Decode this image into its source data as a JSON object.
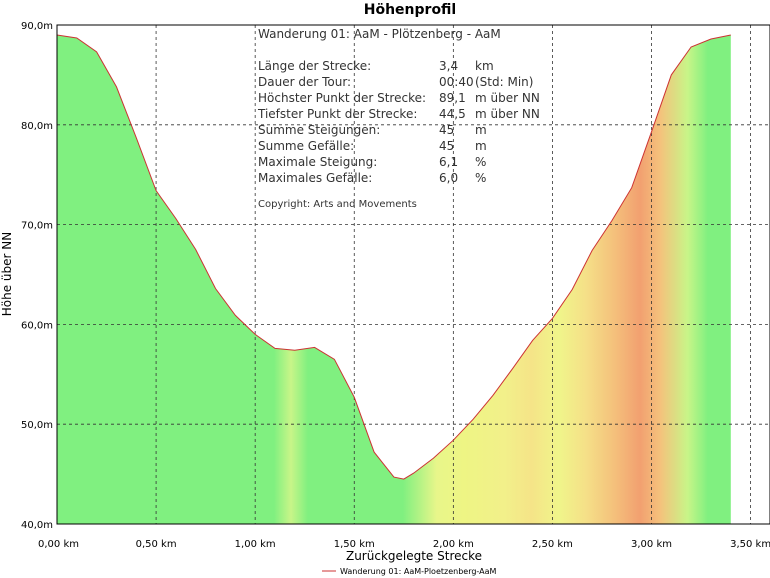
{
  "chart_data": {
    "type": "area",
    "title": "Höhenprofil",
    "xlabel": "Zurückgelegte Strecke",
    "ylabel": "Höhe über NN",
    "xlim": [
      0,
      3.5
    ],
    "ylim": [
      40,
      90
    ],
    "grid": true,
    "x_ticks": [
      "0,00 km",
      "0,50 km",
      "1,00 km",
      "1,50 km",
      "2,00 km",
      "2,50 km",
      "3,00 km",
      "3,50 km"
    ],
    "y_ticks": [
      "40,0m",
      "50,0m",
      "60,0m",
      "70,0m",
      "80,0m",
      "90,0m"
    ],
    "legend": {
      "placement": "bottom-center",
      "entries": [
        "Wanderung 01: AaM-Ploetzenberg-AaM"
      ]
    },
    "series": [
      {
        "name": "Wanderung 01: AaM-Ploetzenberg-AaM",
        "x": [
          0.0,
          0.1,
          0.2,
          0.3,
          0.4,
          0.5,
          0.6,
          0.7,
          0.8,
          0.9,
          1.0,
          1.1,
          1.2,
          1.3,
          1.4,
          1.5,
          1.6,
          1.7,
          1.75,
          1.8,
          1.9,
          2.0,
          2.1,
          2.2,
          2.3,
          2.4,
          2.5,
          2.6,
          2.7,
          2.8,
          2.9,
          3.0,
          3.1,
          3.2,
          3.3,
          3.4
        ],
        "values": [
          89.0,
          88.7,
          87.3,
          83.8,
          78.7,
          73.4,
          70.6,
          67.5,
          63.6,
          60.9,
          59.0,
          57.6,
          57.4,
          57.7,
          56.5,
          52.7,
          47.2,
          44.7,
          44.5,
          45.1,
          46.6,
          48.4,
          50.5,
          52.9,
          55.6,
          58.4,
          60.6,
          63.5,
          67.4,
          70.4,
          73.7,
          79.3,
          85.0,
          87.8,
          88.6,
          89.0
        ]
      }
    ],
    "gradient_colors": {
      "flat": "#80F080",
      "moderate": "#EEF584",
      "steep": "#F2A070"
    }
  },
  "info": {
    "heading": "Wanderung 01: AaM - Plötzenberg - AaM",
    "rows": [
      {
        "label": "Länge der Strecke:",
        "value": "3,4",
        "unit": "km"
      },
      {
        "label": "Dauer der Tour:",
        "value": "00:40",
        "unit": "(Std: Min)"
      },
      {
        "label": "Höchster Punkt der Strecke:",
        "value": "89,1",
        "unit": "m über NN"
      },
      {
        "label": "Tiefster Punkt der Strecke:",
        "value": "44,5",
        "unit": "m über NN"
      },
      {
        "label": "Summe Steigungen:",
        "value": "45",
        "unit": "m"
      },
      {
        "label": "Summe Gefälle:",
        "value": "45",
        "unit": "m"
      },
      {
        "label": "Maximale Steigung:",
        "value": "6,1",
        "unit": "%"
      },
      {
        "label": "Maximales Gefälle:",
        "value": "6,0",
        "unit": "%"
      }
    ],
    "copyright": "Copyright: Arts and Movements"
  },
  "colors": {
    "line": "#CC3333",
    "grid": "#333333",
    "frame": "#000000"
  }
}
